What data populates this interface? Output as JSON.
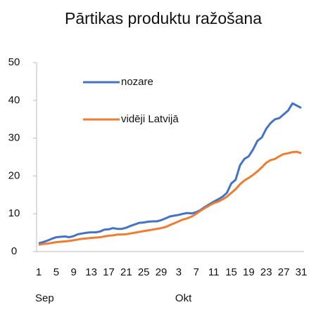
{
  "chart_data": {
    "type": "line",
    "title": "Pārtikas produktu ražošana",
    "categories": [
      "1",
      null,
      null,
      null,
      "5",
      null,
      null,
      null,
      "9",
      null,
      null,
      null,
      "13",
      null,
      null,
      null,
      "17",
      null,
      null,
      null,
      "21",
      null,
      null,
      null,
      "25",
      null,
      null,
      null,
      "29",
      null,
      null,
      null,
      "3",
      null,
      null,
      null,
      "7",
      null,
      null,
      null,
      "11",
      null,
      null,
      null,
      "15",
      null,
      null,
      null,
      "19",
      null,
      null,
      null,
      "23",
      null,
      null,
      null,
      "27",
      null,
      null,
      null,
      "31"
    ],
    "month_labels": [
      "Sep",
      "Okt"
    ],
    "series": [
      {
        "name": "nozare",
        "color": "#4472c4",
        "values": [
          2.2,
          2.5,
          2.9,
          3.4,
          3.8,
          3.9,
          4.0,
          3.8,
          4.1,
          4.6,
          4.8,
          5.0,
          5.1,
          5.1,
          5.3,
          5.8,
          5.9,
          6.2,
          6.0,
          6.0,
          6.3,
          6.8,
          7.2,
          7.6,
          7.7,
          7.9,
          8.0,
          8.0,
          8.3,
          8.8,
          9.3,
          9.5,
          9.7,
          10.0,
          10.2,
          10.1,
          10.4,
          11.0,
          11.8,
          12.5,
          13.2,
          13.8,
          14.5,
          15.5,
          18.0,
          19.0,
          22.8,
          24.5,
          25.2,
          27.0,
          29.3,
          30.2,
          32.5,
          34.0,
          35.0,
          35.3,
          36.3,
          37.3,
          39.2,
          38.6,
          38.0
        ]
      },
      {
        "name": "vidēji Latvijā",
        "color": "#ed7d31",
        "values": [
          1.8,
          2.0,
          2.1,
          2.3,
          2.5,
          2.6,
          2.7,
          2.8,
          3.0,
          3.2,
          3.4,
          3.5,
          3.6,
          3.7,
          3.8,
          4.0,
          4.2,
          4.3,
          4.5,
          4.5,
          4.6,
          4.8,
          5.0,
          5.2,
          5.4,
          5.6,
          5.8,
          6.0,
          6.2,
          6.5,
          7.0,
          7.5,
          8.0,
          8.5,
          8.8,
          9.3,
          10.0,
          10.8,
          11.5,
          12.2,
          12.8,
          13.2,
          13.8,
          14.5,
          15.5,
          16.5,
          17.8,
          18.8,
          19.5,
          20.3,
          21.2,
          22.3,
          23.5,
          24.2,
          24.5,
          25.2,
          25.8,
          26.0,
          26.3,
          26.4,
          26.0
        ]
      }
    ],
    "ylim": [
      0,
      50
    ],
    "yticks": [
      0,
      10,
      20,
      30,
      40,
      50
    ],
    "grid": false
  }
}
